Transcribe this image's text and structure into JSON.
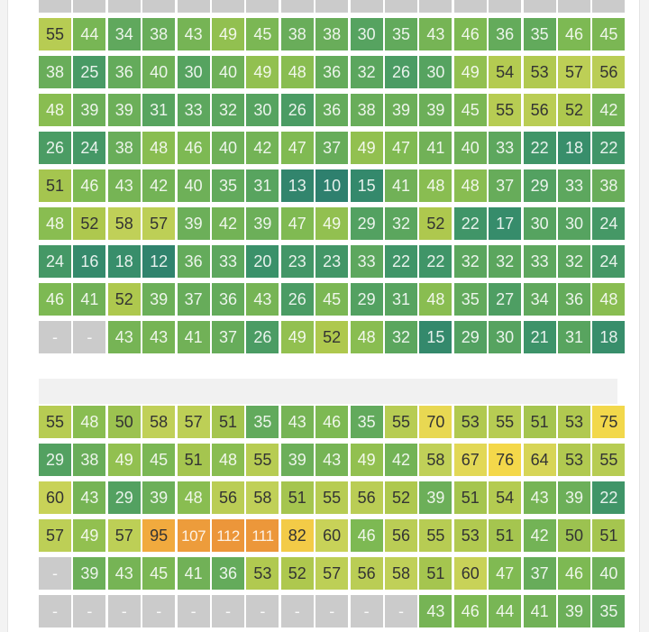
{
  "chart_data": {
    "type": "heatmap",
    "missing_marker": "-",
    "blocks": [
      {
        "rows": [
          [
            null,
            null,
            null,
            null,
            null,
            null,
            null,
            null,
            null,
            null,
            null,
            null,
            null,
            null,
            null,
            null,
            null
          ],
          [
            55,
            44,
            34,
            38,
            43,
            49,
            45,
            38,
            38,
            30,
            35,
            43,
            46,
            36,
            35,
            46,
            45
          ],
          [
            38,
            25,
            36,
            40,
            30,
            40,
            49,
            48,
            36,
            32,
            26,
            30,
            49,
            54,
            53,
            57,
            56
          ],
          [
            48,
            39,
            39,
            31,
            33,
            32,
            30,
            26,
            36,
            38,
            39,
            39,
            45,
            55,
            56,
            52,
            42
          ],
          [
            26,
            24,
            38,
            48,
            46,
            40,
            42,
            47,
            37,
            49,
            47,
            41,
            40,
            33,
            22,
            18,
            22
          ],
          [
            51,
            46,
            43,
            42,
            40,
            35,
            31,
            13,
            10,
            15,
            41,
            48,
            48,
            37,
            29,
            33,
            38
          ],
          [
            48,
            52,
            58,
            57,
            39,
            42,
            39,
            47,
            49,
            29,
            32,
            52,
            22,
            17,
            30,
            30,
            24
          ],
          [
            24,
            16,
            18,
            12,
            36,
            33,
            20,
            23,
            23,
            33,
            22,
            22,
            32,
            32,
            33,
            32,
            24
          ],
          [
            46,
            41,
            52,
            39,
            37,
            36,
            43,
            26,
            45,
            29,
            31,
            48,
            35,
            27,
            34,
            36,
            48
          ],
          [
            null,
            null,
            43,
            43,
            41,
            37,
            26,
            49,
            52,
            48,
            32,
            15,
            29,
            30,
            21,
            31,
            18
          ]
        ]
      },
      {
        "rows": [
          [
            55,
            48,
            50,
            58,
            57,
            51,
            35,
            43,
            46,
            35,
            55,
            70,
            53,
            55,
            51,
            53,
            75
          ],
          [
            29,
            38,
            49,
            45,
            51,
            48,
            55,
            39,
            43,
            49,
            42,
            58,
            67,
            76,
            64,
            53,
            55
          ],
          [
            60,
            43,
            29,
            39,
            48,
            56,
            58,
            51,
            55,
            56,
            52,
            39,
            51,
            54,
            43,
            39,
            22
          ],
          [
            57,
            49,
            57,
            95,
            107,
            112,
            111,
            82,
            60,
            46,
            56,
            55,
            53,
            51,
            42,
            50,
            51
          ],
          [
            null,
            39,
            43,
            45,
            41,
            36,
            53,
            52,
            57,
            56,
            58,
            51,
            60,
            47,
            37,
            46,
            40
          ],
          [
            null,
            null,
            null,
            null,
            null,
            null,
            null,
            null,
            null,
            null,
            null,
            43,
            46,
            44,
            41,
            39,
            35
          ]
        ]
      }
    ]
  }
}
